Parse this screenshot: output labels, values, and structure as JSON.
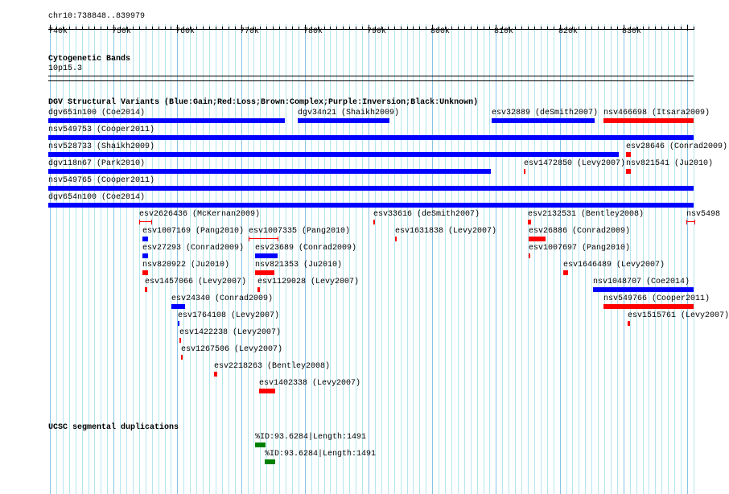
{
  "ruler": {
    "position": "chr10:738848..839979",
    "ticks": [
      "740k",
      "750k",
      "760k",
      "770k",
      "780k",
      "790k",
      "800k",
      "810k",
      "820k",
      "830k"
    ],
    "tick_values_kb": [
      740,
      750,
      760,
      770,
      780,
      790,
      800,
      810,
      820,
      830
    ]
  },
  "cytobands": {
    "title": "Cytogenetic Bands",
    "band": "10p15.3"
  },
  "dgv": {
    "title": "DGV Structural Variants (Blue:Gain;Red:Loss;Brown:Complex;Purple:Inversion;Black:Unknown)",
    "colors": {
      "gain": "#0000ff",
      "loss": "#ff0000"
    },
    "lanes": [
      [
        {
          "label": "dgv651n100 (Coe2014)",
          "start": 739.75,
          "end": 776.9,
          "type": "gain"
        },
        {
          "label": "dgv34n21 (Shaikh2009)",
          "start": 778.9,
          "end": 793.3,
          "type": "gain"
        },
        {
          "label": "esv32889 (deSmith2007)",
          "start": 809.3,
          "end": 825.5,
          "type": "gain"
        },
        {
          "label": "nsv466698 (Itsara2009)",
          "start": 826.9,
          "end": 841.0,
          "type": "loss"
        }
      ],
      [
        {
          "label": "nsv549753 (Cooper2011)",
          "start": 739.75,
          "end": 841.0,
          "type": "gain"
        }
      ],
      [
        {
          "label": "nsv528733 (Shaikh2009)",
          "start": 739.75,
          "end": 829.3,
          "type": "gain"
        },
        {
          "label": "esv28646 (Conrad2009)",
          "start": 830.4,
          "end": 831.2,
          "type": "loss"
        }
      ],
      [
        {
          "label": "dgv118n67 (Park2010)",
          "start": 739.75,
          "end": 809.2,
          "type": "gain"
        },
        {
          "label": "esv1472850 (Levy2007)",
          "start": 814.4,
          "end": 814.6,
          "type": "loss"
        },
        {
          "label": "nsv821541 (Ju2010)",
          "start": 830.4,
          "end": 831.2,
          "type": "loss"
        }
      ],
      [
        {
          "label": "nsv549765 (Cooper2011)",
          "start": 739.75,
          "end": 841.0,
          "type": "gain"
        }
      ],
      [
        {
          "label": "dgv654n100 (Coe2014)",
          "start": 739.75,
          "end": 841.0,
          "type": "gain"
        }
      ],
      [
        {
          "label": "esv2626436 (McKernan2009)",
          "start": 754.0,
          "end": 755.8,
          "type": "loss",
          "style": "whisker"
        },
        {
          "label": "esv33616 (deSmith2007)",
          "start": 790.8,
          "end": 791.0,
          "type": "loss"
        },
        {
          "label": "esv2132531 (Bentley2008)",
          "start": 815.0,
          "end": 815.5,
          "type": "loss"
        },
        {
          "label": "nsv5498",
          "start": 839.9,
          "end": 841.0,
          "type": "loss",
          "style": "whisker"
        }
      ],
      [
        {
          "label": "esv1007169 (Pang2010)",
          "start": 754.5,
          "end": 755.4,
          "type": "gain"
        },
        {
          "label": "esv1007335 (Pang2010)",
          "start": 771.2,
          "end": 775.6,
          "type": "loss",
          "style": "whisker"
        },
        {
          "label": "esv1631838 (Levy2007)",
          "start": 794.2,
          "end": 794.4,
          "type": "loss"
        },
        {
          "label": "esv26886 (Conrad2009)",
          "start": 815.1,
          "end": 817.8,
          "type": "loss"
        }
      ],
      [
        {
          "label": "esv27293 (Conrad2009)",
          "start": 754.5,
          "end": 755.4,
          "type": "gain"
        },
        {
          "label": "esv23689 (Conrad2009)",
          "start": 772.2,
          "end": 775.7,
          "type": "gain"
        },
        {
          "label": "esv1007697 (Pang2010)",
          "start": 815.1,
          "end": 815.4,
          "type": "loss"
        }
      ],
      [
        {
          "label": "nsv820922 (Ju2010)",
          "start": 754.5,
          "end": 755.4,
          "type": "loss"
        },
        {
          "label": "nsv821353 (Ju2010)",
          "start": 772.2,
          "end": 775.2,
          "type": "loss"
        },
        {
          "label": "esv1646489 (Levy2007)",
          "start": 820.6,
          "end": 821.3,
          "type": "loss"
        }
      ],
      [
        {
          "label": "esv1457066 (Levy2007)",
          "start": 754.9,
          "end": 755.3,
          "type": "loss"
        },
        {
          "label": "esv1129028 (Levy2007)",
          "start": 772.6,
          "end": 773.0,
          "type": "loss"
        },
        {
          "label": "nsv1048707 (Coe2014)",
          "start": 825.2,
          "end": 841.0,
          "type": "gain"
        }
      ],
      [
        {
          "label": "esv24340 (Conrad2009)",
          "start": 759.1,
          "end": 761.2,
          "type": "gain"
        },
        {
          "label": "nsv549766 (Cooper2011)",
          "start": 826.9,
          "end": 841.0,
          "type": "loss"
        }
      ],
      [
        {
          "label": "esv1764108 (Levy2007)",
          "start": 760.1,
          "end": 760.3,
          "type": "gain"
        },
        {
          "label": "esv1515761 (Levy2007)",
          "start": 830.7,
          "end": 831.0,
          "type": "loss"
        }
      ],
      [
        {
          "label": "esv1422238 (Levy2007)",
          "start": 760.3,
          "end": 760.5,
          "type": "loss"
        }
      ],
      [
        {
          "label": "esv1267506 (Levy2007)",
          "start": 760.6,
          "end": 760.8,
          "type": "loss"
        }
      ],
      [
        {
          "label": "esv2218263 (Bentley2008)",
          "start": 765.8,
          "end": 766.3,
          "type": "loss"
        }
      ],
      [
        {
          "label": "esv1402338 (Levy2007)",
          "start": 772.8,
          "end": 775.4,
          "type": "loss"
        }
      ]
    ]
  },
  "segdups": {
    "title": "UCSC segmental duplications",
    "color": "#008000",
    "items": [
      {
        "label": "%ID:93.6284|Length:1491",
        "start": 772.2,
        "end": 773.8
      },
      {
        "label": "%ID:93.6284|Length:1491",
        "start": 773.7,
        "end": 775.4
      }
    ]
  }
}
